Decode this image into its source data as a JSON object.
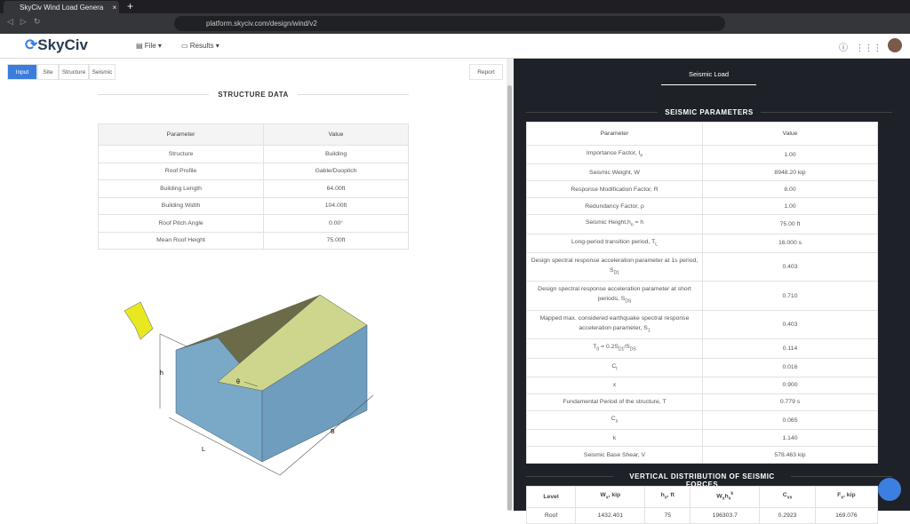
{
  "browser": {
    "tab_title": "SkyCiv Wind Load Genera",
    "url": "platform.skyciv.com/design/wind/v2"
  },
  "app": {
    "logo": "SkyCiv",
    "menu": [
      "File",
      "Results"
    ]
  },
  "left": {
    "tabs": [
      "Input",
      "Site",
      "Structure",
      "Seismic"
    ],
    "report": "Report",
    "section_title": "STRUCTURE DATA",
    "table": {
      "header": [
        "Parameter",
        "Value"
      ],
      "rows": [
        [
          "Structure",
          "Building"
        ],
        [
          "Roof Profile",
          "Gable/Duopitch"
        ],
        [
          "Building Length",
          "64.00ft"
        ],
        [
          "Building Width",
          "104.00ft"
        ],
        [
          "Roof Pitch Angle",
          "0.00°"
        ],
        [
          "Mean Roof Height",
          "75.00ft"
        ]
      ]
    },
    "diagram": {
      "labels": [
        "h",
        "θ",
        "B",
        "L"
      ]
    }
  },
  "right": {
    "tab": "Seismic Load",
    "section_title": "SEISMIC PARAMETERS",
    "table": {
      "header": [
        "Parameter",
        "Value"
      ],
      "rows": [
        {
          "label": [
            {
              "text": "Importance Factor, I"
            },
            {
              "sub": "e"
            }
          ],
          "value": "1.00"
        },
        {
          "label": [
            {
              "text": "Seismic Weight, W"
            }
          ],
          "value": "8948.20 kip"
        },
        {
          "label": [
            {
              "text": "Response Modification Factor, R"
            }
          ],
          "value": "8.00"
        },
        {
          "label": [
            {
              "text": "Redundancy Factor, ρ"
            }
          ],
          "value": "1.00"
        },
        {
          "label": [
            {
              "text": "Seismic Height,h"
            },
            {
              "sub": "n"
            },
            {
              "text": " = h"
            }
          ],
          "value": "75.00 ft"
        },
        {
          "label": [
            {
              "text": "Long-period transition period, T"
            },
            {
              "sub": "L"
            }
          ],
          "value": "16.000 s"
        },
        {
          "label": [
            {
              "text": "Design spectral response acceleration parameter at 1s period, S"
            },
            {
              "sub": "D1"
            }
          ],
          "value": "0.403"
        },
        {
          "label": [
            {
              "text": "Design spectral response acceleration parameter at short periods, S"
            },
            {
              "sub": "DS"
            }
          ],
          "value": "0.710"
        },
        {
          "label": [
            {
              "text": "Mapped max. considered earthquake spectral response acceleration parameter, S"
            },
            {
              "sub": "1"
            }
          ],
          "value": "0.403"
        },
        {
          "label": [
            {
              "text": "T"
            },
            {
              "sub": "0"
            },
            {
              "text": " = 0.2S"
            },
            {
              "sub": "D1"
            },
            {
              "text": "/S"
            },
            {
              "sub": "DS"
            }
          ],
          "value": "0.114"
        },
        {
          "label": [
            {
              "text": "C"
            },
            {
              "sub": "t"
            }
          ],
          "value": "0.016"
        },
        {
          "label": [
            {
              "text": "x"
            }
          ],
          "value": "0.900"
        },
        {
          "label": [
            {
              "text": "Fundamental Period of the structure, T"
            }
          ],
          "value": "0.779 s"
        },
        {
          "label": [
            {
              "text": "C"
            },
            {
              "sub": "s"
            }
          ],
          "value": "0.065"
        },
        {
          "label": [
            {
              "text": "k"
            }
          ],
          "value": "1.140"
        },
        {
          "label": [
            {
              "text": "Seismic Base Shear, V"
            }
          ],
          "value": "578.463 kip"
        }
      ]
    },
    "vertical_title": "VERTICAL DISTRIBUTION OF SEISMIC FORCES",
    "vertical_table": {
      "header": [
        [
          {
            "text": "Level"
          }
        ],
        [
          {
            "text": "W"
          },
          {
            "sub": "x"
          },
          {
            "text": ", kip"
          }
        ],
        [
          {
            "text": "h"
          },
          {
            "sub": "x"
          },
          {
            "text": ", ft"
          }
        ],
        [
          {
            "text": "W"
          },
          {
            "sub": "x"
          },
          {
            "text": "h"
          },
          {
            "sub": "x"
          },
          {
            "sup": "k"
          }
        ],
        [
          {
            "text": "C"
          },
          {
            "sub": "vx"
          }
        ],
        [
          {
            "text": "F"
          },
          {
            "sub": "x"
          },
          {
            "text": ", kip"
          }
        ]
      ],
      "rows": [
        [
          "Roof",
          "1432.401",
          "75",
          "196303.7",
          "0.2923",
          "169.076"
        ]
      ]
    }
  }
}
